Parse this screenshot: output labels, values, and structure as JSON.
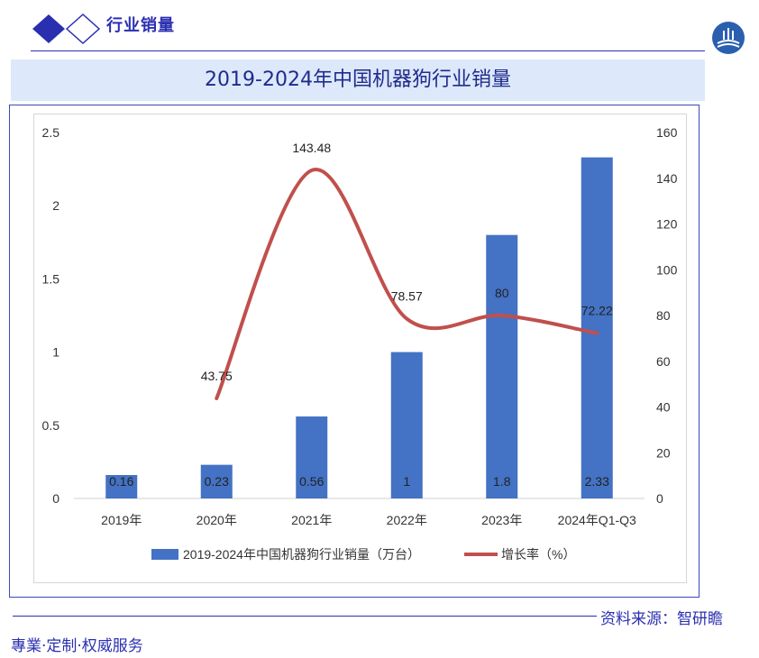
{
  "header": {
    "section_title": "行业销量"
  },
  "chart_data": {
    "type": "bar",
    "title": "2019-2024年中国机器狗行业销量",
    "categories": [
      "2019年",
      "2020年",
      "2021年",
      "2022年",
      "2023年",
      "2024年Q1-Q3"
    ],
    "series": [
      {
        "name": "2019-2024年中国机器狗行业销量（万台）",
        "type": "bar",
        "axis": "left",
        "color": "#4472c4",
        "values": [
          0.16,
          0.23,
          0.56,
          1,
          1.8,
          2.33
        ],
        "labels": [
          "0.16",
          "0.23",
          "0.56",
          "1",
          "1.8",
          "2.33"
        ]
      },
      {
        "name": "增长率（%）",
        "type": "line",
        "axis": "right",
        "color": "#c0504d",
        "values": [
          null,
          43.75,
          143.48,
          78.57,
          80,
          72.22
        ],
        "labels": [
          "",
          "43.75",
          "143.48",
          "78.57",
          "80",
          "72.22"
        ]
      }
    ],
    "y_left": {
      "min": 0,
      "max": 2.5,
      "ticks": [
        "0",
        "0.5",
        "1",
        "1.5",
        "2",
        "2.5"
      ]
    },
    "y_right": {
      "min": 0,
      "max": 160,
      "ticks": [
        "0",
        "20",
        "40",
        "60",
        "80",
        "100",
        "120",
        "140",
        "160"
      ]
    },
    "legend_position": "bottom",
    "grid": false
  },
  "footer": {
    "source": "资料来源：智研瞻",
    "slogan": "專業·定制·权威服务"
  }
}
